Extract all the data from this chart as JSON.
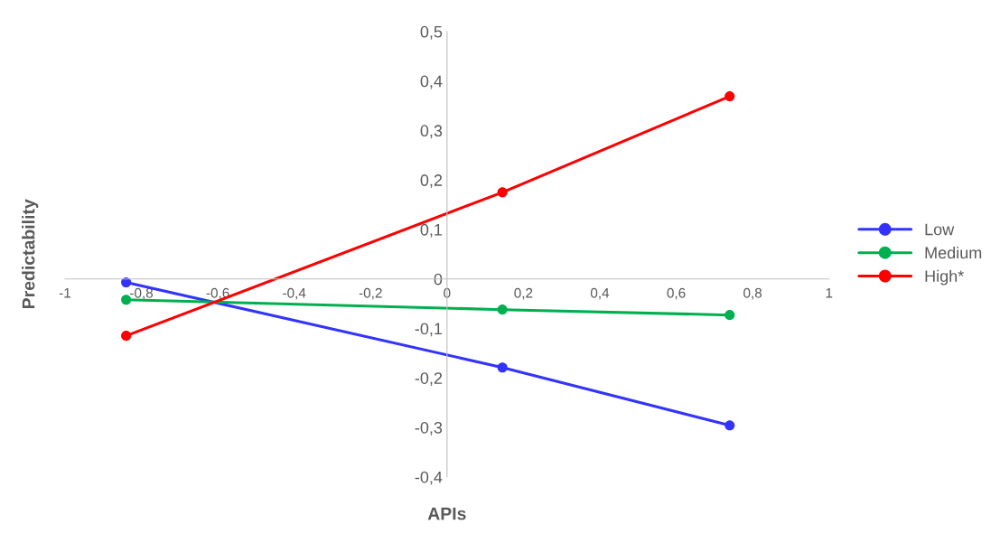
{
  "chart_data": {
    "type": "line",
    "xlabel": "APIs",
    "ylabel": "Predictability",
    "x": [
      -0.84,
      0.145,
      0.74
    ],
    "series": [
      {
        "name": "Low",
        "color": "#3333ff",
        "values": [
          -0.007,
          -0.179,
          -0.296
        ]
      },
      {
        "name": "Medium",
        "color": "#00b050",
        "values": [
          -0.042,
          -0.062,
          -0.073
        ]
      },
      {
        "name": "High*",
        "color": "#ff0000",
        "values": [
          -0.115,
          0.175,
          0.369
        ]
      }
    ],
    "xlim": [
      -1,
      1
    ],
    "ylim": [
      -0.4,
      0.5
    ],
    "xticks": [
      {
        "value": -1,
        "label": "-1"
      },
      {
        "value": -0.8,
        "label": "-0,8"
      },
      {
        "value": -0.6,
        "label": "-0,6"
      },
      {
        "value": -0.4,
        "label": "-0,4"
      },
      {
        "value": -0.2,
        "label": "-0,2"
      },
      {
        "value": 0,
        "label": "0"
      },
      {
        "value": 0.2,
        "label": "0,2"
      },
      {
        "value": 0.4,
        "label": "0,4"
      },
      {
        "value": 0.6,
        "label": "0,6"
      },
      {
        "value": 0.8,
        "label": "0,8"
      },
      {
        "value": 1,
        "label": "1"
      }
    ],
    "yticks": [
      {
        "value": -0.4,
        "label": "-0,4"
      },
      {
        "value": -0.3,
        "label": "-0,3"
      },
      {
        "value": -0.2,
        "label": "-0,2"
      },
      {
        "value": -0.1,
        "label": "-0,1"
      },
      {
        "value": 0,
        "label": "0"
      },
      {
        "value": 0.1,
        "label": "0,1"
      },
      {
        "value": 0.2,
        "label": "0,2"
      },
      {
        "value": 0.3,
        "label": "0,3"
      },
      {
        "value": 0.4,
        "label": "0,4"
      },
      {
        "value": 0.5,
        "label": "0,5"
      }
    ],
    "grid": false,
    "legend": "right",
    "marker": "circle",
    "line_style": "solid"
  }
}
